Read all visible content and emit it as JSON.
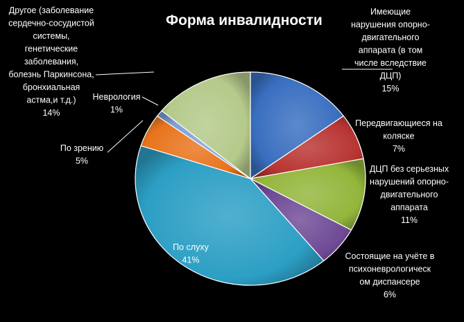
{
  "chart_data": {
    "type": "pie",
    "title": "Форма инвалидности",
    "slices": [
      {
        "label": [
          "Имеющие",
          "нарушения опорно-",
          "двигательного",
          "аппарата (в том",
          "числе вследствие",
          "ДЦП)"
        ],
        "percent_label": "15%",
        "value": 15,
        "color": "#3a6fc0"
      },
      {
        "label": [
          "Передвигающиеся на",
          "коляске"
        ],
        "percent_label": "7%",
        "value": 7,
        "color": "#b83532"
      },
      {
        "label": [
          "ДЦП без серьезных",
          "нарушений опорно-",
          "двигательного",
          "аппарата"
        ],
        "percent_label": "11%",
        "value": 11,
        "color": "#93b63c"
      },
      {
        "label": [
          "Состоящие на учёте в",
          "психоневрологическ",
          "ом диспансере"
        ],
        "percent_label": "6%",
        "value": 6,
        "color": "#6f4a96"
      },
      {
        "label": [
          "По слуху"
        ],
        "percent_label": "41%",
        "value": 41,
        "color": "#2c9fc4"
      },
      {
        "label": [
          "По зрению"
        ],
        "percent_label": "5%",
        "value": 5,
        "color": "#e8741d"
      },
      {
        "label": [
          "Неврология"
        ],
        "percent_label": "1%",
        "value": 1,
        "color": "#7ea0d6"
      },
      {
        "label": [
          "Другое (заболевание",
          "сердечно-сосудистой",
          "системы,",
          "генетические",
          "заболевания,",
          "болезнь Паркинсона,",
          "бронхиальная",
          "астма,и т.д.)"
        ],
        "percent_label": "14%",
        "value": 14,
        "color": "#b5c98a"
      }
    ]
  }
}
